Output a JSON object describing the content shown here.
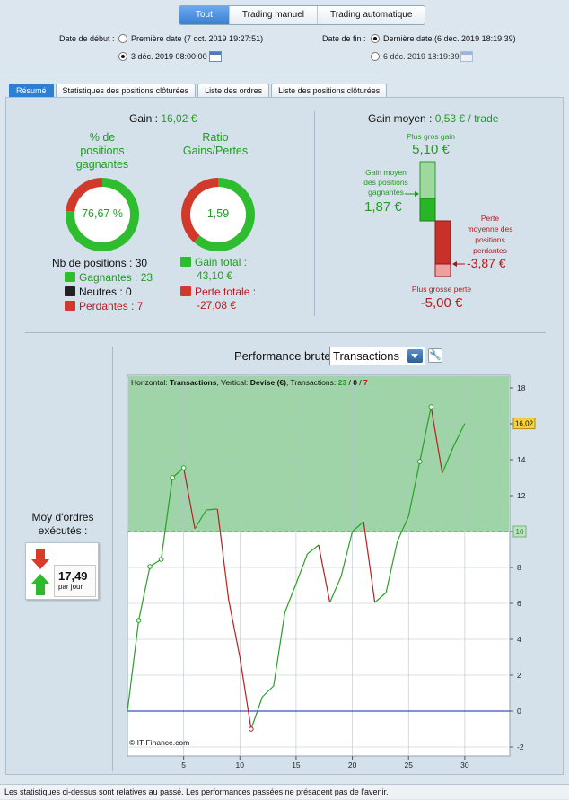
{
  "top_tabs": [
    "Tout",
    "Trading manuel",
    "Trading automatique"
  ],
  "dates": {
    "start_label": "Date de début :",
    "start_option_1": "Première date (7 oct. 2019 19:27:51)",
    "start_option_2": "3 déc. 2019 08:00:00",
    "end_label": "Date de fin :",
    "end_option_1": "Dernière date (6 déc. 2019 18:19:39)",
    "end_option_2": "6 déc. 2019 18:19:39"
  },
  "tabs": [
    "Résumé",
    "Statistiques des positions clôturées",
    "Liste des ordres",
    "Liste des positions clôturées"
  ],
  "summary": {
    "gain_label": "Gain :",
    "gain_value": "16,02 €",
    "pct_title_1": "% de",
    "pct_title_2": "positions",
    "pct_title_3": "gagnantes",
    "pct_value": "76,67 %",
    "pct_fraction": 0.7667,
    "ratio_title_1": "Ratio",
    "ratio_title_2": "Gains/Pertes",
    "ratio_value": "1,59",
    "ratio_fraction": 0.614,
    "nb_positions": "Nb de positions : 30",
    "gagnantes": "Gagnantes : 23",
    "neutres": "Neutres : 0",
    "perdantes": "Perdantes : 7",
    "gain_total_1": "Gain total :",
    "gain_total_2": "43,10 €",
    "perte_totale_1": "Perte totale :",
    "perte_totale_2": "-27,08 €"
  },
  "gain_moyen": {
    "label": "Gain moyen :",
    "value": "0,53 € / trade",
    "plus_gros_gain_label": "Plus gros gain",
    "plus_gros_gain_value": "5,10 €",
    "gain_moyen_pos_1": "Gain moyen",
    "gain_moyen_pos_2": "des positions",
    "gain_moyen_pos_3": "gagnantes",
    "gain_moyen_pos_value": "1,87 €",
    "perte_moy_1": "Perte",
    "perte_moy_2": "moyenne des",
    "perte_moy_3": "positions",
    "perte_moy_4": "perdantes",
    "perte_moy_value": "-3,87 €",
    "plus_grosse_perte_label": "Plus grosse perte",
    "plus_grosse_perte_value": "-5,00 €"
  },
  "orders": {
    "label_1": "Moy d'ordres",
    "label_2": "exécutés :",
    "value": "17,49",
    "unit": "par jour"
  },
  "performance": {
    "title": "Performance brute",
    "select_value": "Transactions",
    "info_h": "Horizontal:",
    "info_h_val": "Transactions",
    "info_v": ", Vertical:",
    "info_v_val": "Devise (€)",
    "info_t": ", Transactions:",
    "info_win": "23",
    "info_sep1": " / ",
    "info_neutral": "0",
    "info_sep2": " / ",
    "info_loss": "7",
    "watermark": "© IT-Finance.com",
    "last_value_label": "16,02",
    "ref_label": "10"
  },
  "chart_data": {
    "type": "line",
    "x": [
      0,
      1,
      2,
      3,
      4,
      5,
      6,
      7,
      8,
      9,
      10,
      11,
      12,
      13,
      14,
      15,
      16,
      17,
      18,
      19,
      20,
      21,
      22,
      23,
      24,
      25,
      26,
      27,
      28,
      29,
      30
    ],
    "y": [
      0,
      5.05,
      8.05,
      8.45,
      13.0,
      13.55,
      10.15,
      11.2,
      11.25,
      6.2,
      3.0,
      -1.0,
      0.8,
      1.4,
      5.5,
      7.1,
      8.75,
      9.25,
      6.05,
      7.5,
      10.0,
      10.55,
      6.05,
      6.6,
      9.45,
      10.85,
      13.9,
      16.95,
      13.25,
      14.75,
      16.02
    ],
    "xticks": [
      5,
      10,
      15,
      20,
      25,
      30
    ],
    "yticks": [
      -2,
      0,
      2,
      4,
      6,
      8,
      10,
      12,
      14,
      16,
      18
    ],
    "xlim": [
      0,
      34
    ],
    "ylim": [
      -2.5,
      18.7
    ],
    "reference_line": 10,
    "colors": {
      "up": "#2aa02a",
      "down": "#b52020",
      "zero": "#3b4fc4",
      "fill": "#9fd4a9"
    }
  },
  "footer": "Les statistiques ci-dessus sont relatives au passé. Les performances passées ne présagent pas de l'avenir."
}
